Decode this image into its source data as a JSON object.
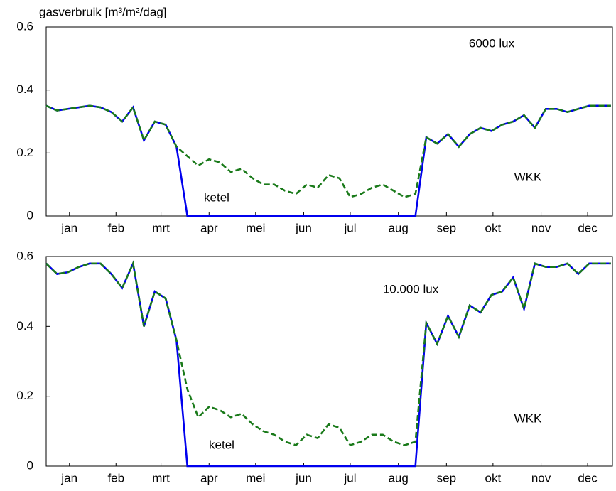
{
  "chart_data": [
    {
      "type": "line",
      "ylabel": "gasverbruik [m³/m²/dag]",
      "annotations": [
        "6000 lux",
        "WKK",
        "ketel"
      ],
      "x": [
        0,
        7,
        14,
        21,
        28,
        35,
        42,
        49,
        56,
        63,
        70,
        77,
        84,
        91,
        98,
        105,
        112,
        119,
        126,
        133,
        140,
        147,
        154,
        161,
        168,
        175,
        182,
        189,
        196,
        203,
        210,
        217,
        224,
        231,
        238,
        245,
        252,
        259,
        266,
        273,
        280,
        287,
        294,
        301,
        308,
        315,
        322,
        329,
        336,
        343,
        350,
        357,
        364
      ],
      "xlim": [
        0,
        365
      ],
      "xticks": [
        {
          "value": 15,
          "label": "jan"
        },
        {
          "value": 45,
          "label": "feb"
        },
        {
          "value": 74,
          "label": "mrt"
        },
        {
          "value": 105,
          "label": "apr"
        },
        {
          "value": 135,
          "label": "mei"
        },
        {
          "value": 166,
          "label": "jun"
        },
        {
          "value": 196,
          "label": "jul"
        },
        {
          "value": 227,
          "label": "aug"
        },
        {
          "value": 258,
          "label": "sep"
        },
        {
          "value": 288,
          "label": "okt"
        },
        {
          "value": 319,
          "label": "nov"
        },
        {
          "value": 349,
          "label": "dec"
        }
      ],
      "ylim": [
        0,
        0.6
      ],
      "yticks": [
        0,
        0.2,
        0.4,
        0.6
      ],
      "grid": false,
      "series": [
        {
          "color": "#0000ee",
          "linestyle": "solid",
          "values": [
            0.35,
            0.335,
            0.34,
            0.345,
            0.35,
            0.345,
            0.33,
            0.3,
            0.345,
            0.24,
            0.3,
            0.29,
            0.22,
            0,
            0,
            0,
            0,
            0,
            0,
            0,
            0,
            0,
            0,
            0,
            0,
            0,
            0,
            0,
            0,
            0,
            0,
            0,
            0,
            0,
            0,
            0.25,
            0.23,
            0.26,
            0.22,
            0.26,
            0.28,
            0.27,
            0.29,
            0.3,
            0.32,
            0.28,
            0.34,
            0.34,
            0.33,
            0.34,
            0.35,
            0.35,
            0.35
          ]
        },
        {
          "color": "#1a7a1a",
          "linestyle": "dashed",
          "values": [
            0.35,
            0.335,
            0.34,
            0.345,
            0.35,
            0.345,
            0.33,
            0.3,
            0.345,
            0.24,
            0.3,
            0.29,
            0.22,
            0.19,
            0.16,
            0.18,
            0.17,
            0.14,
            0.15,
            0.12,
            0.1,
            0.1,
            0.08,
            0.07,
            0.1,
            0.09,
            0.13,
            0.12,
            0.06,
            0.07,
            0.09,
            0.1,
            0.08,
            0.06,
            0.07,
            0.25,
            0.23,
            0.26,
            0.22,
            0.26,
            0.28,
            0.27,
            0.29,
            0.3,
            0.32,
            0.28,
            0.34,
            0.34,
            0.33,
            0.34,
            0.35,
            0.35,
            0.35
          ]
        }
      ]
    },
    {
      "type": "line",
      "annotations": [
        "10.000 lux",
        "WKK",
        "ketel"
      ],
      "x": [
        0,
        7,
        14,
        21,
        28,
        35,
        42,
        49,
        56,
        63,
        70,
        77,
        84,
        91,
        98,
        105,
        112,
        119,
        126,
        133,
        140,
        147,
        154,
        161,
        168,
        175,
        182,
        189,
        196,
        203,
        210,
        217,
        224,
        231,
        238,
        245,
        252,
        259,
        266,
        273,
        280,
        287,
        294,
        301,
        308,
        315,
        322,
        329,
        336,
        343,
        350,
        357,
        364
      ],
      "xlim": [
        0,
        365
      ],
      "xticks": [
        {
          "value": 15,
          "label": "jan"
        },
        {
          "value": 45,
          "label": "feb"
        },
        {
          "value": 74,
          "label": "mrt"
        },
        {
          "value": 105,
          "label": "apr"
        },
        {
          "value": 135,
          "label": "mei"
        },
        {
          "value": 166,
          "label": "jun"
        },
        {
          "value": 196,
          "label": "jul"
        },
        {
          "value": 227,
          "label": "aug"
        },
        {
          "value": 258,
          "label": "sep"
        },
        {
          "value": 288,
          "label": "okt"
        },
        {
          "value": 319,
          "label": "nov"
        },
        {
          "value": 349,
          "label": "dec"
        }
      ],
      "ylim": [
        0,
        0.6
      ],
      "yticks": [
        0,
        0.2,
        0.4,
        0.6
      ],
      "grid": false,
      "series": [
        {
          "color": "#0000ee",
          "linestyle": "solid",
          "values": [
            0.58,
            0.55,
            0.555,
            0.57,
            0.58,
            0.58,
            0.55,
            0.51,
            0.58,
            0.4,
            0.5,
            0.48,
            0.36,
            0,
            0,
            0,
            0,
            0,
            0,
            0,
            0,
            0,
            0,
            0,
            0,
            0,
            0,
            0,
            0,
            0,
            0,
            0,
            0,
            0,
            0,
            0.41,
            0.35,
            0.43,
            0.37,
            0.46,
            0.44,
            0.49,
            0.5,
            0.54,
            0.45,
            0.58,
            0.57,
            0.57,
            0.58,
            0.55,
            0.58,
            0.58,
            0.58
          ]
        },
        {
          "color": "#1a7a1a",
          "linestyle": "dashed",
          "values": [
            0.58,
            0.55,
            0.555,
            0.57,
            0.58,
            0.58,
            0.55,
            0.51,
            0.58,
            0.4,
            0.5,
            0.48,
            0.36,
            0.22,
            0.14,
            0.17,
            0.16,
            0.14,
            0.15,
            0.12,
            0.1,
            0.09,
            0.07,
            0.06,
            0.09,
            0.08,
            0.12,
            0.11,
            0.06,
            0.07,
            0.09,
            0.09,
            0.07,
            0.06,
            0.07,
            0.41,
            0.35,
            0.43,
            0.37,
            0.46,
            0.44,
            0.49,
            0.5,
            0.54,
            0.45,
            0.58,
            0.57,
            0.57,
            0.58,
            0.55,
            0.58,
            0.58,
            0.58
          ]
        }
      ]
    }
  ]
}
